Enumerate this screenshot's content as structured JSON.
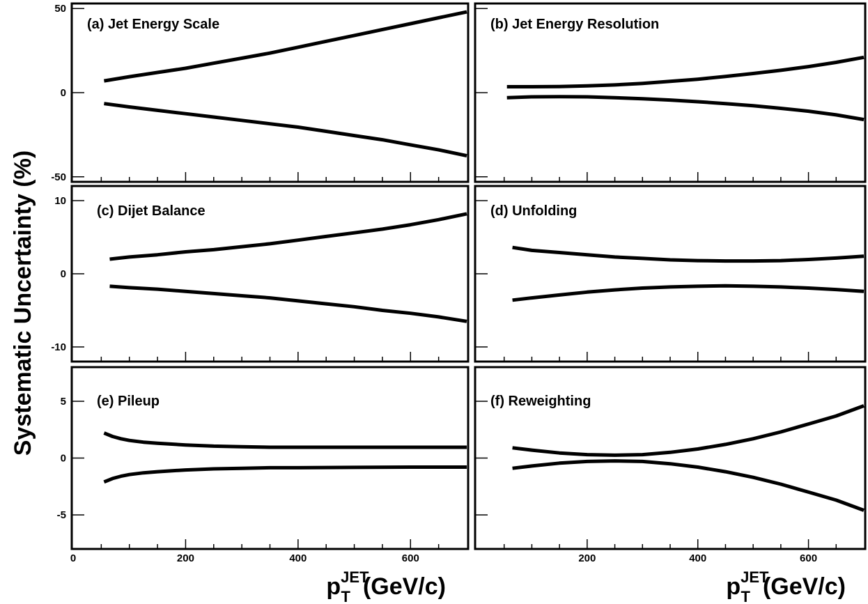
{
  "chart_data": [
    {
      "type": "line",
      "label": "(a) Jet Energy Scale",
      "xlim": [
        0,
        700
      ],
      "ylim": [
        -53,
        53
      ],
      "yticks": [
        {
          "v": -50,
          "label": "-50"
        },
        {
          "v": 0,
          "label": "0"
        },
        {
          "v": 50,
          "label": "50"
        }
      ],
      "xticks": [],
      "series": [
        {
          "x": [
            55,
            100,
            150,
            200,
            250,
            300,
            350,
            400,
            450,
            500,
            550,
            600,
            650,
            700
          ],
          "y": [
            7,
            9.5,
            12,
            14.5,
            17.5,
            20.5,
            23.5,
            27,
            30.5,
            34,
            37.5,
            41,
            44.5,
            48
          ]
        },
        {
          "x": [
            55,
            100,
            150,
            200,
            250,
            300,
            350,
            400,
            450,
            500,
            550,
            600,
            650,
            700
          ],
          "y": [
            -6.5,
            -8.5,
            -10.5,
            -12.5,
            -14.5,
            -16.5,
            -18.5,
            -20.5,
            -23,
            -25.5,
            -28,
            -31,
            -34,
            -37.5
          ]
        }
      ]
    },
    {
      "type": "line",
      "label": "(b) Jet Energy Resolution",
      "xlim": [
        0,
        700
      ],
      "ylim": [
        -53,
        53
      ],
      "yticks": [],
      "xticks": [],
      "series": [
        {
          "x": [
            55,
            100,
            150,
            200,
            250,
            300,
            350,
            400,
            450,
            500,
            550,
            600,
            650,
            700
          ],
          "y": [
            3.5,
            3.5,
            3.6,
            4,
            4.6,
            5.5,
            6.7,
            8,
            9.6,
            11.4,
            13.3,
            15.5,
            18,
            21
          ]
        },
        {
          "x": [
            55,
            100,
            150,
            200,
            250,
            300,
            350,
            400,
            450,
            500,
            550,
            600,
            650,
            700
          ],
          "y": [
            -3,
            -2.5,
            -2.4,
            -2.5,
            -3,
            -3.6,
            -4.4,
            -5.4,
            -6.5,
            -7.8,
            -9.3,
            -11,
            -13.2,
            -16
          ]
        }
      ]
    },
    {
      "type": "line",
      "label": "(c) Dijet Balance",
      "xlim": [
        0,
        700
      ],
      "ylim": [
        -12,
        12
      ],
      "yticks": [
        {
          "v": -10,
          "label": "-10"
        },
        {
          "v": 0,
          "label": "0"
        },
        {
          "v": 10,
          "label": "10"
        }
      ],
      "xticks": [],
      "series": [
        {
          "x": [
            65,
            100,
            150,
            200,
            250,
            300,
            350,
            400,
            450,
            500,
            550,
            600,
            650,
            700
          ],
          "y": [
            2,
            2.3,
            2.6,
            3,
            3.3,
            3.7,
            4.1,
            4.6,
            5.1,
            5.6,
            6.1,
            6.7,
            7.4,
            8.2
          ]
        },
        {
          "x": [
            65,
            100,
            150,
            200,
            250,
            300,
            350,
            400,
            450,
            500,
            550,
            600,
            650,
            700
          ],
          "y": [
            -1.7,
            -1.9,
            -2.1,
            -2.4,
            -2.7,
            -3,
            -3.3,
            -3.7,
            -4.1,
            -4.5,
            -5,
            -5.4,
            -5.9,
            -6.5
          ]
        }
      ]
    },
    {
      "type": "line",
      "label": "(d) Unfolding",
      "xlim": [
        0,
        700
      ],
      "ylim": [
        -12,
        12
      ],
      "yticks": [],
      "xticks": [],
      "series": [
        {
          "x": [
            65,
            100,
            150,
            200,
            250,
            300,
            350,
            400,
            450,
            500,
            550,
            600,
            650,
            700
          ],
          "y": [
            3.6,
            3.2,
            2.9,
            2.6,
            2.3,
            2.1,
            1.9,
            1.8,
            1.75,
            1.75,
            1.8,
            1.95,
            2.15,
            2.4
          ]
        },
        {
          "x": [
            65,
            100,
            150,
            200,
            250,
            300,
            350,
            400,
            450,
            500,
            550,
            600,
            650,
            700
          ],
          "y": [
            -3.6,
            -3.3,
            -2.9,
            -2.5,
            -2.2,
            -1.95,
            -1.8,
            -1.7,
            -1.65,
            -1.7,
            -1.8,
            -1.95,
            -2.15,
            -2.4
          ]
        }
      ]
    },
    {
      "type": "line",
      "label": "(e) Pileup",
      "xlim": [
        0,
        700
      ],
      "ylim": [
        -8,
        8
      ],
      "yticks": [
        {
          "v": -5,
          "label": "-5"
        },
        {
          "v": 0,
          "label": "0"
        },
        {
          "v": 5,
          "label": "5"
        }
      ],
      "xticks": [
        {
          "v": 0,
          "label": "0"
        },
        {
          "v": 200,
          "label": "200"
        },
        {
          "v": 400,
          "label": "400"
        },
        {
          "v": 600,
          "label": "600"
        }
      ],
      "series": [
        {
          "x": [
            55,
            70,
            85,
            100,
            125,
            150,
            200,
            250,
            300,
            350,
            400,
            500,
            600,
            700
          ],
          "y": [
            2.2,
            1.9,
            1.7,
            1.55,
            1.4,
            1.3,
            1.15,
            1.05,
            1,
            0.95,
            0.95,
            0.95,
            0.95,
            0.95
          ]
        },
        {
          "x": [
            55,
            70,
            85,
            100,
            125,
            150,
            200,
            250,
            300,
            350,
            400,
            500,
            600,
            700
          ],
          "y": [
            -2.1,
            -1.8,
            -1.6,
            -1.45,
            -1.3,
            -1.2,
            -1.05,
            -0.95,
            -0.9,
            -0.85,
            -0.85,
            -0.82,
            -0.8,
            -0.8
          ]
        }
      ]
    },
    {
      "type": "line",
      "label": "(f) Reweighting",
      "xlim": [
        0,
        700
      ],
      "ylim": [
        -8,
        8
      ],
      "yticks": [],
      "xticks": [
        {
          "v": 200,
          "label": "200"
        },
        {
          "v": 400,
          "label": "400"
        },
        {
          "v": 600,
          "label": "600"
        }
      ],
      "series": [
        {
          "x": [
            65,
            100,
            150,
            200,
            250,
            300,
            350,
            400,
            450,
            500,
            550,
            600,
            650,
            700
          ],
          "y": [
            0.9,
            0.7,
            0.45,
            0.3,
            0.25,
            0.3,
            0.5,
            0.8,
            1.2,
            1.7,
            2.3,
            3,
            3.7,
            4.6
          ]
        },
        {
          "x": [
            65,
            100,
            150,
            200,
            250,
            300,
            350,
            400,
            450,
            500,
            550,
            600,
            650,
            700
          ],
          "y": [
            -0.9,
            -0.7,
            -0.45,
            -0.3,
            -0.25,
            -0.3,
            -0.5,
            -0.8,
            -1.2,
            -1.7,
            -2.3,
            -3,
            -3.7,
            -4.6
          ]
        }
      ]
    }
  ],
  "ylabel": "Systematic Uncertainty (%)",
  "xlabel": {
    "main": "p",
    "sup": "JET",
    "sub": "T",
    "unit": "(GeV/c)"
  }
}
